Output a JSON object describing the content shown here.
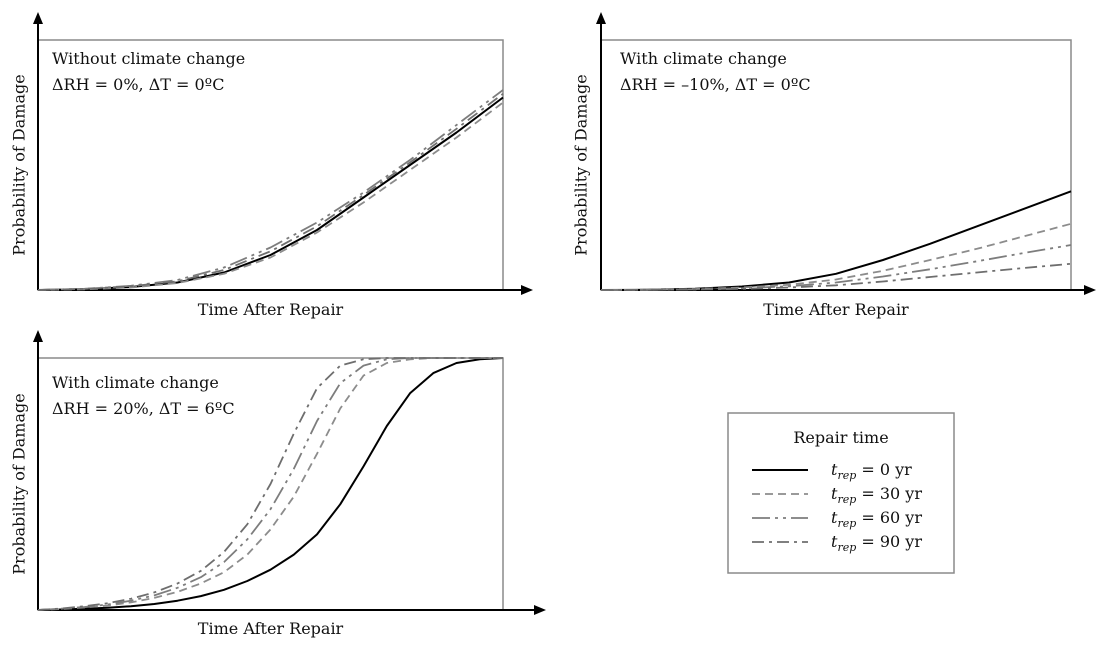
{
  "styles": {
    "t0": {
      "color": "#000000",
      "dash": ""
    },
    "t30": {
      "color": "#8c8c8c",
      "dash": "8 5"
    },
    "t60": {
      "color": "#7d7d7d",
      "dash": "18 5 3 5 3 5"
    },
    "t90": {
      "color": "#6e6e6e",
      "dash": "12 5 3 5"
    }
  },
  "legend": {
    "title": "Repair time",
    "entries": [
      {
        "key": "t0",
        "sym": "t",
        "sub": "rep",
        "rest": " = 0 yr"
      },
      {
        "key": "t30",
        "sym": "t",
        "sub": "rep",
        "rest": " = 30 yr"
      },
      {
        "key": "t60",
        "sym": "t",
        "sub": "rep",
        "rest": " = 60 yr"
      },
      {
        "key": "t90",
        "sym": "t",
        "sub": "rep",
        "rest": " = 90 yr"
      }
    ]
  },
  "chart_data": [
    {
      "type": "line",
      "title": "Without climate change",
      "subtitle": "ΔRH = 0%, ΔT = 0ºC",
      "xlabel": "Time After Repair",
      "ylabel": "Probability of Damage",
      "xlim": [
        0,
        1
      ],
      "ylim": [
        0,
        1
      ],
      "x": [
        0,
        0.1,
        0.2,
        0.3,
        0.4,
        0.5,
        0.6,
        0.7,
        0.8,
        0.9,
        1.0
      ],
      "series": [
        {
          "key": "t0",
          "values": [
            0,
            0.003,
            0.012,
            0.03,
            0.07,
            0.14,
            0.24,
            0.37,
            0.5,
            0.63,
            0.77
          ]
        },
        {
          "key": "t30",
          "values": [
            0,
            0.003,
            0.01,
            0.028,
            0.065,
            0.13,
            0.23,
            0.35,
            0.48,
            0.61,
            0.75
          ]
        },
        {
          "key": "t60",
          "values": [
            0,
            0.005,
            0.017,
            0.04,
            0.09,
            0.17,
            0.27,
            0.39,
            0.52,
            0.66,
            0.8
          ]
        },
        {
          "key": "t90",
          "values": [
            0,
            0.005,
            0.015,
            0.035,
            0.08,
            0.155,
            0.255,
            0.38,
            0.51,
            0.645,
            0.785
          ]
        }
      ]
    },
    {
      "type": "line",
      "title": "With climate change",
      "subtitle": "ΔRH = –10%, ΔT = 0ºC",
      "xlabel": "Time After Repair",
      "ylabel": "Probability of Damage",
      "xlim": [
        0,
        1
      ],
      "ylim": [
        0,
        1
      ],
      "x": [
        0,
        0.1,
        0.2,
        0.3,
        0.4,
        0.5,
        0.6,
        0.7,
        0.8,
        0.9,
        1.0
      ],
      "series": [
        {
          "key": "t0",
          "values": [
            0,
            0.001,
            0.005,
            0.014,
            0.03,
            0.065,
            0.12,
            0.185,
            0.255,
            0.325,
            0.395
          ]
        },
        {
          "key": "t30",
          "values": [
            0,
            0.001,
            0.004,
            0.01,
            0.021,
            0.042,
            0.077,
            0.12,
            0.165,
            0.215,
            0.265
          ]
        },
        {
          "key": "t60",
          "values": [
            0,
            0.001,
            0.003,
            0.007,
            0.015,
            0.03,
            0.054,
            0.083,
            0.115,
            0.148,
            0.18
          ]
        },
        {
          "key": "t90",
          "values": [
            0,
            0.001,
            0.002,
            0.005,
            0.01,
            0.019,
            0.034,
            0.052,
            0.07,
            0.088,
            0.105
          ]
        }
      ]
    },
    {
      "type": "line",
      "title": "With climate change",
      "subtitle": "ΔRH = 20%, ΔT = 6ºC",
      "xlabel": "Time After Repair",
      "ylabel": "Probability of Damage",
      "xlim": [
        0,
        1
      ],
      "ylim": [
        0,
        1
      ],
      "x": [
        0,
        0.05,
        0.1,
        0.15,
        0.2,
        0.25,
        0.3,
        0.35,
        0.4,
        0.45,
        0.5,
        0.55,
        0.6,
        0.65,
        0.7,
        0.75,
        0.8,
        0.85,
        0.9,
        0.95,
        1.0
      ],
      "series": [
        {
          "key": "t0",
          "values": [
            0,
            0.002,
            0.005,
            0.009,
            0.015,
            0.024,
            0.037,
            0.055,
            0.08,
            0.115,
            0.16,
            0.22,
            0.3,
            0.42,
            0.57,
            0.73,
            0.86,
            0.94,
            0.98,
            0.995,
            1.0
          ]
        },
        {
          "key": "t30",
          "values": [
            0,
            0.004,
            0.01,
            0.018,
            0.03,
            0.048,
            0.072,
            0.105,
            0.15,
            0.22,
            0.32,
            0.45,
            0.62,
            0.8,
            0.93,
            0.98,
            0.995,
            1.0,
            1.0,
            1.0,
            1.0
          ]
        },
        {
          "key": "t60",
          "values": [
            0,
            0.005,
            0.012,
            0.022,
            0.037,
            0.058,
            0.088,
            0.13,
            0.19,
            0.28,
            0.4,
            0.56,
            0.75,
            0.9,
            0.97,
            0.995,
            1.0,
            1.0,
            1.0,
            1.0,
            1.0
          ]
        },
        {
          "key": "t90",
          "values": [
            0,
            0.006,
            0.015,
            0.027,
            0.045,
            0.07,
            0.105,
            0.155,
            0.23,
            0.34,
            0.5,
            0.7,
            0.88,
            0.97,
            0.995,
            1.0,
            1.0,
            1.0,
            1.0,
            1.0,
            1.0
          ]
        }
      ]
    }
  ]
}
